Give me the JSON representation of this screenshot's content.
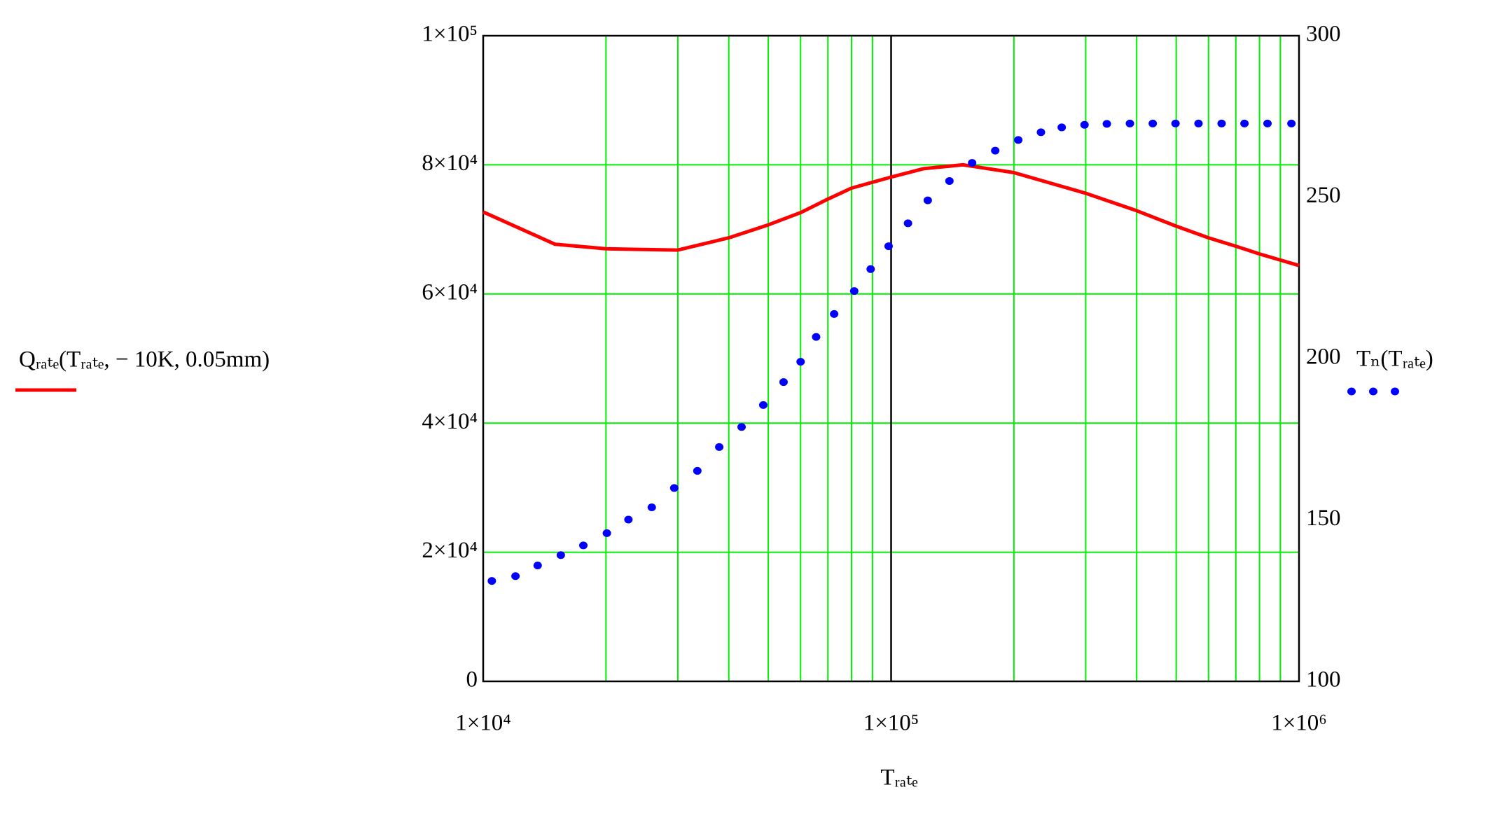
{
  "chart_data": {
    "type": "line",
    "x_label": "Tᵣₐₜₑ",
    "xscale": "log",
    "xlim": [
      10000,
      1000000
    ],
    "xticks": [
      {
        "value": 10000,
        "label": "1×10⁴"
      },
      {
        "value": 100000,
        "label": "1×10⁵"
      },
      {
        "value": 1000000,
        "label": "1×10⁶"
      }
    ],
    "ylim": [
      0,
      100000
    ],
    "yticks": [
      0,
      {
        "value": 20000,
        "label": "2×10⁴"
      },
      {
        "value": 40000,
        "label": "4×10⁴"
      },
      {
        "value": 60000,
        "label": "6×10⁴"
      },
      {
        "value": 80000,
        "label": "8×10⁴"
      },
      {
        "value": 100000,
        "label": "1×10⁵"
      }
    ],
    "y2lim": [
      100,
      300
    ],
    "y2ticks": [
      100,
      150,
      200,
      250,
      300
    ],
    "grid": true,
    "grid_color": "#00ee00",
    "series": [
      {
        "name": "Qᵣₐₜₑ(Tᵣₐₜₑ, − 10K, 0.05mm)",
        "color": "#ff0000",
        "style": "solid",
        "x": [
          10000,
          15000,
          20000,
          30000,
          40000,
          50000,
          60000,
          70000,
          80000,
          100000,
          120000,
          150000,
          200000,
          300000,
          400000,
          500000,
          600000,
          700000,
          800000,
          1000000
        ],
        "values": [
          72700,
          67700,
          67000,
          66800,
          68700,
          70700,
          72600,
          74700,
          76400,
          78100,
          79400,
          80000,
          78800,
          75600,
          72900,
          70500,
          68700,
          67400,
          66200,
          64400
        ]
      },
      {
        "name": "Tₙ(Tᵣₐₜₑ)",
        "color": "#0000ff",
        "style": "dotted",
        "axis": "y2",
        "x": [
          10500,
          12000,
          13600,
          15500,
          17600,
          20100,
          22700,
          25900,
          29400,
          33500,
          37900,
          43000,
          48600,
          54500,
          60000,
          65500,
          72500,
          81200,
          89100,
          98600,
          110000,
          123000,
          139000,
          158000,
          180000,
          205000,
          233000,
          262000,
          298000,
          338000,
          385000,
          438000,
          498000,
          567000,
          646000,
          735000,
          837000,
          958000
        ],
        "values": [
          131.1,
          132.6,
          135.9,
          139.1,
          142.1,
          145.9,
          150.1,
          153.9,
          159.9,
          165.2,
          172.6,
          178.8,
          185.6,
          192.7,
          199.0,
          206.7,
          213.8,
          220.9,
          227.7,
          234.8,
          241.9,
          249.0,
          255.0,
          260.6,
          264.4,
          267.7,
          270.1,
          271.6,
          272.4,
          272.7,
          272.8,
          272.8,
          272.8,
          272.8,
          272.8,
          272.8,
          272.8,
          272.8
        ]
      }
    ]
  }
}
